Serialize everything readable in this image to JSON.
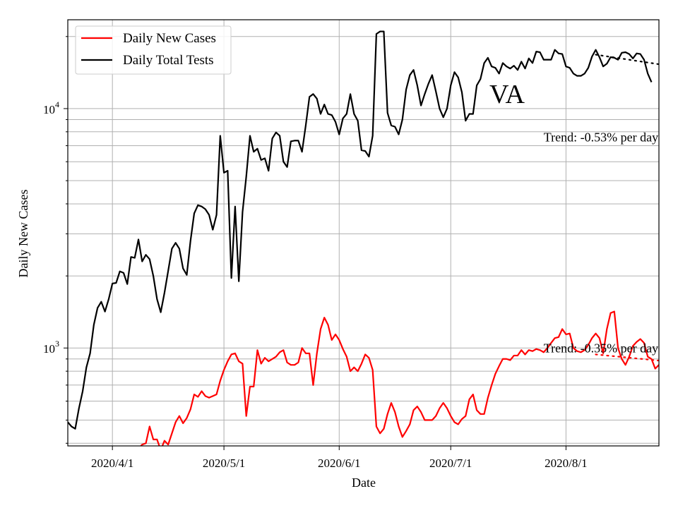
{
  "chart_data": {
    "type": "line",
    "title": "",
    "xlabel": "Date",
    "ylabel": "Daily New Cases",
    "yscale": "log",
    "xlim": [
      "2020-03-20",
      "2020-08-26"
    ],
    "ylim": [
      390,
      23500
    ],
    "grid": true,
    "legend_position": "top-left",
    "x_ticks": [
      {
        "date": "2020-04-01",
        "label": "2020/4/1"
      },
      {
        "date": "2020-05-01",
        "label": "2020/5/1"
      },
      {
        "date": "2020-06-01",
        "label": "2020/6/1"
      },
      {
        "date": "2020-07-01",
        "label": "2020/7/1"
      },
      {
        "date": "2020-08-01",
        "label": "2020/8/1"
      }
    ],
    "y_ticks": [
      {
        "value": 1000,
        "base": "10",
        "exp": "3"
      },
      {
        "value": 10000,
        "base": "10",
        "exp": "4"
      }
    ],
    "region_label": "VA",
    "annotations": [
      {
        "text": "Trend: -0.53% per day",
        "anchor_date": "2020-07-26",
        "anchor_value": 7300
      },
      {
        "text": "Trend: -0.35% per day",
        "anchor_date": "2020-07-26",
        "anchor_value": 960
      }
    ],
    "series": [
      {
        "name": "Daily New Cases",
        "color": "#ff0000",
        "start_date": "2020-03-20",
        "values": [
          null,
          null,
          null,
          null,
          null,
          null,
          null,
          null,
          null,
          null,
          null,
          null,
          null,
          null,
          null,
          null,
          null,
          null,
          null,
          380,
          395,
          400,
          470,
          415,
          415,
          375,
          410,
          395,
          440,
          490,
          520,
          485,
          510,
          555,
          640,
          625,
          660,
          630,
          620,
          630,
          640,
          730,
          810,
          880,
          940,
          950,
          880,
          860,
          520,
          690,
          690,
          980,
          860,
          910,
          880,
          900,
          920,
          960,
          980,
          870,
          850,
          850,
          870,
          1000,
          950,
          950,
          700,
          950,
          1200,
          1340,
          1250,
          1080,
          1140,
          1080,
          990,
          920,
          800,
          830,
          800,
          860,
          940,
          910,
          810,
          470,
          440,
          460,
          530,
          590,
          540,
          470,
          425,
          450,
          480,
          550,
          570,
          540,
          500,
          500,
          500,
          520,
          560,
          590,
          560,
          520,
          490,
          480,
          505,
          520,
          610,
          640,
          550,
          530,
          530,
          620,
          700,
          780,
          840,
          900,
          900,
          890,
          930,
          930,
          980,
          940,
          980,
          970,
          990,
          980,
          960,
          1000,
          1050,
          1100,
          1110,
          1200,
          1140,
          1150,
          1000,
          970,
          960,
          980,
          1030,
          1100,
          1150,
          1100,
          950,
          1200,
          1400,
          1420,
          1000,
          900,
          850,
          920,
          1020,
          1060,
          1090,
          1050,
          920,
          900,
          820,
          850,
          900,
          1000,
          1020,
          1000,
          880
        ],
        "trend": {
          "start_date": "2020-08-09",
          "end_date": "2020-08-26",
          "start": 940,
          "end": 886
        }
      },
      {
        "name": "Daily Total Tests",
        "color": "#000000",
        "start_date": "2020-03-20",
        "values": [
          490,
          470,
          460,
          560,
          660,
          830,
          950,
          1250,
          1470,
          1560,
          1420,
          1600,
          1860,
          1870,
          2090,
          2060,
          1850,
          2400,
          2380,
          2840,
          2300,
          2450,
          2350,
          2000,
          1600,
          1410,
          1700,
          2100,
          2600,
          2750,
          2600,
          2150,
          2020,
          2800,
          3650,
          3950,
          3900,
          3800,
          3600,
          3120,
          3600,
          7700,
          5400,
          5500,
          1960,
          3900,
          1900,
          3700,
          5200,
          7700,
          6600,
          6800,
          6100,
          6200,
          5500,
          7500,
          7950,
          7700,
          6000,
          5700,
          7300,
          7350,
          7350,
          6600,
          8500,
          11200,
          11500,
          11000,
          9500,
          10400,
          9500,
          9400,
          8800,
          7800,
          9100,
          9500,
          11500,
          9500,
          8900,
          6700,
          6650,
          6300,
          7700,
          20500,
          21000,
          21000,
          9600,
          8500,
          8400,
          7800,
          9000,
          12000,
          13800,
          14500,
          12500,
          10300,
          11500,
          12700,
          13800,
          11800,
          10000,
          9200,
          10000,
          12500,
          14200,
          13500,
          11700,
          8900,
          9500,
          9500,
          12500,
          13300,
          15500,
          16300,
          15000,
          14800,
          14000,
          15500,
          15000,
          14700,
          15100,
          14500,
          15700,
          14700,
          16200,
          15500,
          17300,
          17200,
          16000,
          16000,
          16000,
          17600,
          17000,
          16900,
          15000,
          14800,
          14000,
          13700,
          13700,
          14000,
          14800,
          16500,
          17600,
          16400,
          15000,
          15400,
          16400,
          16300,
          16000,
          17100,
          17200,
          16900,
          16200,
          17000,
          16900,
          16000,
          14000,
          12900
        ],
        "trend": {
          "start_date": "2020-08-09",
          "end_date": "2020-08-26",
          "start": 16800,
          "end": 15320
        }
      }
    ]
  }
}
